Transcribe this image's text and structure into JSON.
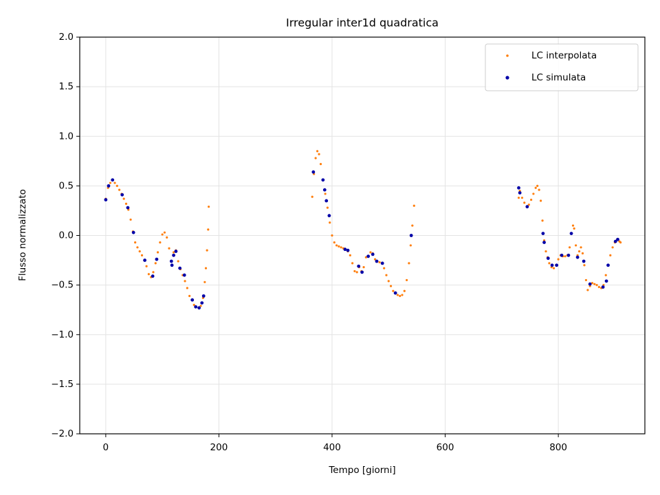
{
  "chart_data": {
    "type": "scatter",
    "title": "Irregular inter1d quadratica",
    "xlabel": "Tempo [giorni]",
    "ylabel": "Flusso normalizzato",
    "xlim": [
      -46,
      953
    ],
    "xticks": [
      0,
      200,
      400,
      600,
      800
    ],
    "ylim": [
      -2,
      2
    ],
    "yticks": [
      {
        "value": -2,
        "label": "−2.0"
      },
      {
        "value": -1.5,
        "label": "−1.5"
      },
      {
        "value": -1,
        "label": "−1.0"
      },
      {
        "value": -0.5,
        "label": "−0.5"
      },
      {
        "value": 0,
        "label": "0.0"
      },
      {
        "value": 0.5,
        "label": "0.5"
      },
      {
        "value": 1,
        "label": "1.0"
      },
      {
        "value": 1.5,
        "label": "1.5"
      },
      {
        "value": 2,
        "label": "2.0"
      }
    ],
    "grid": true,
    "legend": "upper right",
    "series": [
      {
        "name": "LC interpolata",
        "color": "#ff7f0e",
        "x": [
          0,
          4,
          8,
          12,
          16,
          20,
          24,
          28,
          32,
          36,
          40,
          44,
          48,
          52,
          56,
          60,
          64,
          68,
          72,
          76,
          80,
          84,
          88,
          92,
          96,
          100,
          104,
          108,
          112,
          116,
          120,
          124,
          128,
          132,
          136,
          140,
          144,
          148,
          152,
          156,
          160,
          164,
          168,
          172,
          175,
          177,
          179,
          181,
          182,
          365,
          368,
          371,
          374,
          377,
          380,
          384,
          388,
          392,
          396,
          400,
          404,
          408,
          412,
          416,
          420,
          424,
          428,
          432,
          436,
          440,
          444,
          448,
          452,
          456,
          460,
          464,
          468,
          472,
          476,
          480,
          484,
          488,
          492,
          496,
          500,
          504,
          508,
          512,
          516,
          520,
          524,
          528,
          532,
          536,
          539,
          542,
          545,
          730,
          732,
          736,
          740,
          744,
          748,
          752,
          756,
          760,
          763,
          766,
          769,
          772,
          775,
          778,
          781,
          784,
          788,
          792,
          796,
          800,
          804,
          808,
          812,
          816,
          820,
          823,
          826,
          828,
          831,
          834,
          837,
          840,
          843,
          846,
          849,
          852,
          856,
          860,
          864,
          868,
          872,
          876,
          880,
          884,
          888,
          892,
          896,
          900,
          904,
          908,
          910
        ],
        "values": [
          0.37,
          0.48,
          0.53,
          0.56,
          0.53,
          0.5,
          0.46,
          0.42,
          0.37,
          0.32,
          0.26,
          0.16,
          0.04,
          -0.07,
          -0.12,
          -0.16,
          -0.2,
          -0.25,
          -0.31,
          -0.39,
          -0.42,
          -0.37,
          -0.28,
          -0.17,
          -0.07,
          0.01,
          0.03,
          -0.02,
          -0.13,
          -0.26,
          -0.17,
          -0.15,
          -0.26,
          -0.34,
          -0.4,
          -0.46,
          -0.53,
          -0.61,
          -0.65,
          -0.7,
          -0.72,
          -0.73,
          -0.71,
          -0.63,
          -0.47,
          -0.33,
          -0.15,
          0.06,
          0.29,
          0.39,
          0.62,
          0.78,
          0.85,
          0.82,
          0.72,
          0.56,
          0.42,
          0.28,
          0.13,
          0.0,
          -0.07,
          -0.1,
          -0.11,
          -0.12,
          -0.13,
          -0.14,
          -0.16,
          -0.2,
          -0.28,
          -0.36,
          -0.37,
          -0.32,
          -0.36,
          -0.32,
          -0.22,
          -0.21,
          -0.17,
          -0.18,
          -0.24,
          -0.26,
          -0.27,
          -0.28,
          -0.33,
          -0.4,
          -0.46,
          -0.51,
          -0.56,
          -0.58,
          -0.6,
          -0.61,
          -0.6,
          -0.56,
          -0.45,
          -0.28,
          -0.1,
          0.1,
          0.3,
          0.38,
          0.45,
          0.38,
          0.33,
          0.29,
          0.31,
          0.36,
          0.42,
          0.48,
          0.5,
          0.46,
          0.35,
          0.15,
          -0.05,
          -0.16,
          -0.22,
          -0.28,
          -0.32,
          -0.33,
          -0.3,
          -0.24,
          -0.2,
          -0.21,
          -0.21,
          -0.2,
          -0.12,
          0.02,
          0.1,
          0.07,
          -0.1,
          -0.2,
          -0.16,
          -0.12,
          -0.18,
          -0.3,
          -0.45,
          -0.55,
          -0.51,
          -0.48,
          -0.49,
          -0.5,
          -0.52,
          -0.53,
          -0.5,
          -0.4,
          -0.3,
          -0.2,
          -0.12,
          -0.07,
          -0.04,
          -0.06,
          -0.07
        ]
      },
      {
        "name": "LC simulata",
        "color": "#0000a8",
        "x": [
          0,
          5,
          12,
          29,
          39,
          49,
          69,
          83,
          90,
          116,
          117,
          120,
          124,
          131,
          139,
          153,
          159,
          165,
          170,
          173,
          367,
          384,
          387,
          390,
          395,
          423,
          428,
          447,
          453,
          464,
          472,
          479,
          489,
          512,
          540,
          730,
          732,
          745,
          773,
          775,
          782,
          789,
          797,
          806,
          818,
          823,
          834,
          845,
          856,
          879,
          885,
          888,
          901,
          905
        ],
        "values": [
          0.36,
          0.5,
          0.56,
          0.41,
          0.28,
          0.03,
          -0.25,
          -0.41,
          -0.24,
          -0.26,
          -0.3,
          -0.2,
          -0.16,
          -0.33,
          -0.4,
          -0.65,
          -0.72,
          -0.73,
          -0.68,
          -0.61,
          0.64,
          0.56,
          0.46,
          0.35,
          0.2,
          -0.14,
          -0.15,
          -0.31,
          -0.37,
          -0.21,
          -0.19,
          -0.26,
          -0.28,
          -0.58,
          0.0,
          0.48,
          0.43,
          0.29,
          0.02,
          -0.07,
          -0.23,
          -0.3,
          -0.3,
          -0.2,
          -0.2,
          0.02,
          -0.22,
          -0.26,
          -0.49,
          -0.52,
          -0.46,
          -0.3,
          -0.06,
          -0.04
        ]
      }
    ]
  }
}
